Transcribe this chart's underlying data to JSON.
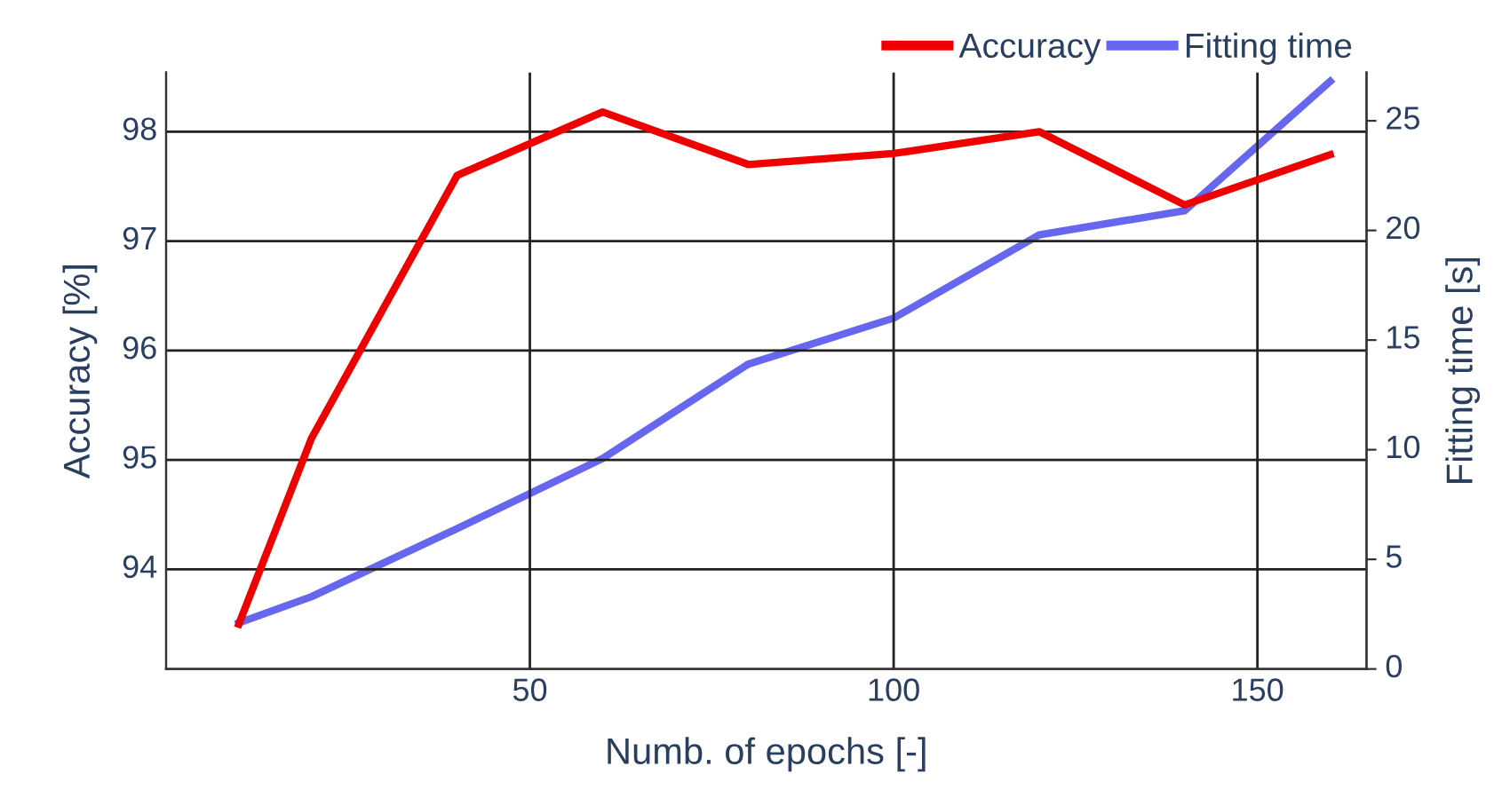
{
  "chart_data": {
    "type": "line",
    "xlabel": "Numb. of epochs [-]",
    "ylabel": "Accuracy [%]",
    "y2label": "Fitting time [s]",
    "x": [
      10,
      20,
      40,
      60,
      80,
      100,
      120,
      140,
      160
    ],
    "series": [
      {
        "name": "Accuracy",
        "color": "#ee0000",
        "values": [
          93.5,
          95.2,
          97.6,
          98.18,
          97.7,
          97.8,
          98.0,
          97.33,
          97.79
        ]
      },
      {
        "name": "Fitting time",
        "color": "#6666ee",
        "axis": "y2",
        "values": [
          2.1,
          3.3,
          6.4,
          9.6,
          13.9,
          16.0,
          19.8,
          20.9,
          26.8
        ]
      }
    ],
    "xlim": [
      0,
      165
    ],
    "xticks": [
      50,
      100,
      150
    ],
    "ylim": [
      93.09,
      98.54
    ],
    "yticks": [
      94,
      95,
      96,
      97,
      98
    ],
    "y2lim": [
      0,
      27.2
    ],
    "y2ticks": [
      0,
      5,
      10,
      15,
      20,
      25
    ],
    "grid": true,
    "legend": "top right",
    "marker": "none",
    "line_style": "solid"
  }
}
